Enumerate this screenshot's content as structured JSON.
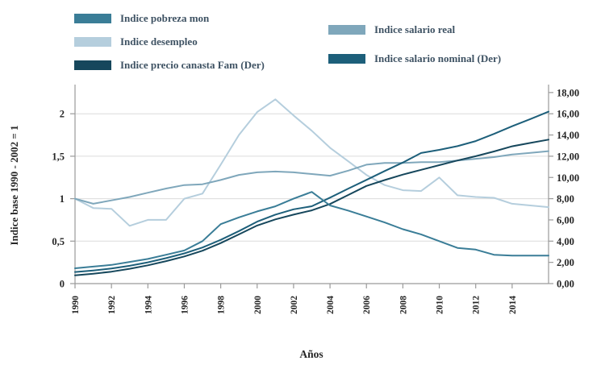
{
  "legend": {
    "items": [
      {
        "label": "Indice pobreza mon"
      },
      {
        "label": "Indice desempleo"
      },
      {
        "label": "Indice precio canasta Fam (Der)"
      },
      {
        "label": "Indice salario real"
      },
      {
        "label": "Indice salario nominal (Der)"
      }
    ]
  },
  "chart_data": {
    "type": "line",
    "title": "",
    "xlabel": "Años",
    "ylabel_left": "Indice base 1990 - 2002 = 1",
    "x": [
      1990,
      1991,
      1992,
      1993,
      1994,
      1995,
      1996,
      1997,
      1998,
      1999,
      2000,
      2001,
      2002,
      2003,
      2004,
      2005,
      2006,
      2007,
      2008,
      2009,
      2010,
      2011,
      2012,
      2013,
      2014,
      2015,
      2016
    ],
    "x_tick_years": [
      1990,
      1992,
      1994,
      1996,
      1998,
      2000,
      2002,
      2004,
      2006,
      2008,
      2010,
      2012,
      2014
    ],
    "left_axis": {
      "tick_labels": [
        "0",
        "0,5",
        "1",
        "1,5",
        "2"
      ],
      "tick_values": [
        0,
        0.5,
        1,
        1.5,
        2
      ],
      "range": [
        0,
        2.34
      ]
    },
    "right_axis": {
      "tick_labels": [
        "0,00",
        "2,00",
        "4,00",
        "6,00",
        "8,00",
        "10,00",
        "12,00",
        "14,00",
        "16,00",
        "18,00"
      ],
      "tick_values": [
        0,
        2,
        4,
        6,
        8,
        10,
        12,
        14,
        16,
        18
      ],
      "range": [
        0,
        18.75
      ]
    },
    "gridlines_left_values": [
      0.5,
      1,
      1.5,
      2
    ],
    "grid_color": "#dcdcdc",
    "axis_color": "#9a9a9a",
    "tick_text_color": "#262626",
    "series": [
      {
        "name": "Indice pobreza mon",
        "axis": "left",
        "color": "#3a7d97",
        "values": [
          0.18,
          0.2,
          0.22,
          0.255,
          0.29,
          0.34,
          0.39,
          0.5,
          0.7,
          0.78,
          0.85,
          0.91,
          1.0,
          1.08,
          0.92,
          0.86,
          0.79,
          0.72,
          0.64,
          0.58,
          0.5,
          0.42,
          0.4,
          0.34,
          0.33,
          0.33,
          0.33
        ]
      },
      {
        "name": "Indice desempleo",
        "axis": "left",
        "color": "#b5cedd",
        "values": [
          1.0,
          0.89,
          0.88,
          0.68,
          0.75,
          0.75,
          1.0,
          1.06,
          1.4,
          1.75,
          2.02,
          2.17,
          1.98,
          1.8,
          1.6,
          1.44,
          1.28,
          1.16,
          1.1,
          1.09,
          1.25,
          1.04,
          1.02,
          1.01,
          0.94,
          0.92,
          0.9
        ]
      },
      {
        "name": "Indice precio canasta Fam (Der)",
        "axis": "right",
        "color": "#16475c",
        "values": [
          0.78,
          0.93,
          1.12,
          1.4,
          1.72,
          2.12,
          2.56,
          3.1,
          3.82,
          4.64,
          5.47,
          6.05,
          6.5,
          6.9,
          7.5,
          8.35,
          9.2,
          9.75,
          10.27,
          10.72,
          11.16,
          11.6,
          12.0,
          12.45,
          12.93,
          13.25,
          13.56
        ]
      },
      {
        "name": "Indice salario real",
        "axis": "left",
        "color": "#7fa7bb",
        "values": [
          1.0,
          0.94,
          0.98,
          1.02,
          1.07,
          1.12,
          1.16,
          1.17,
          1.22,
          1.28,
          1.31,
          1.32,
          1.31,
          1.29,
          1.27,
          1.33,
          1.4,
          1.42,
          1.42,
          1.43,
          1.43,
          1.45,
          1.47,
          1.49,
          1.52,
          1.54,
          1.56
        ]
      },
      {
        "name": "Indice salario nominal (Der)",
        "axis": "right",
        "color": "#1d5f7a",
        "values": [
          1.09,
          1.24,
          1.42,
          1.68,
          2.0,
          2.4,
          2.85,
          3.4,
          4.12,
          4.95,
          5.84,
          6.5,
          7.0,
          7.29,
          8.1,
          8.95,
          9.77,
          10.6,
          11.41,
          12.3,
          12.6,
          12.95,
          13.43,
          14.1,
          14.82,
          15.5,
          16.2
        ]
      }
    ],
    "legend_position": "top",
    "grid": true
  }
}
